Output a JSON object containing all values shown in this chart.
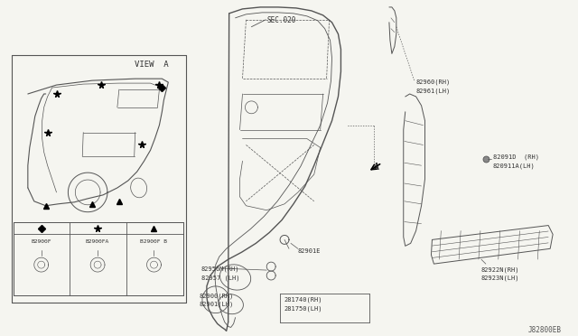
{
  "bg_color": "#f5f5f0",
  "line_color": "#555555",
  "text_color": "#333333",
  "labels": {
    "sec_020": "SEC.020",
    "view_a": "VIEW  A",
    "part_A": "A",
    "B2960RH": "82960(RH)",
    "B2961LH": "82961(LH)",
    "B2901E": "82901E",
    "B2956MRH": "82956M(RH)",
    "B2957LH": "82957 (LH)",
    "B2900RH": "82900(RH)",
    "B2901LH": "82901(LH)",
    "B1740RH": "281740(RH)",
    "B1750LH": "281750(LH)",
    "B2091RH": "82091D  (RH)",
    "B2091ALH": "820911A(LH)",
    "B2922NRH": "82922N(RH)",
    "B2923NLH": "82923N(LH)",
    "B2900F": "B2900F",
    "B2900FA": "B2900FA",
    "B2900FB": "B2900F B",
    "watermark": "J82800EB"
  },
  "font_sizes": {
    "label": 5.0,
    "watermark": 5.5,
    "view": 6.5,
    "sec": 5.5
  }
}
